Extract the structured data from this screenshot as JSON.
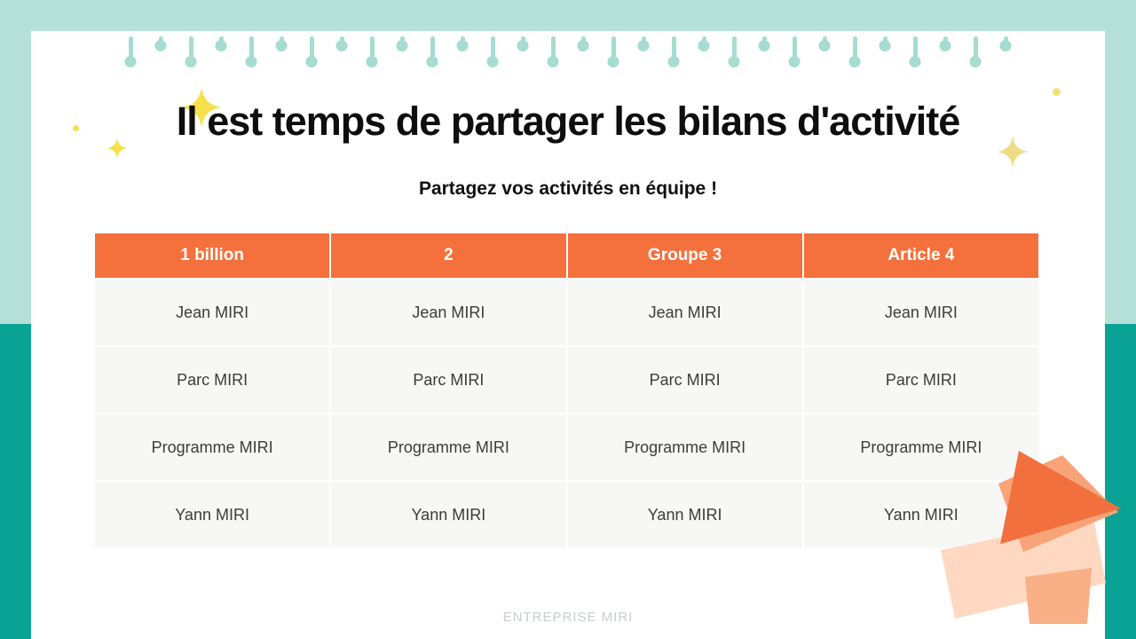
{
  "slide": {
    "title": "Il est temps de partager les bilans d'activité",
    "subtitle": "Partagez vos activités en équipe !",
    "footer": "ENTREPRISE MIRI"
  },
  "table": {
    "headers": [
      "1 billion",
      "2",
      "Groupe 3",
      "Article 4"
    ],
    "rows": [
      [
        "Jean MIRI",
        "Jean MIRI",
        "Jean MIRI",
        "Jean MIRI"
      ],
      [
        "Parc MIRI",
        "Parc MIRI",
        "Parc MIRI",
        "Parc MIRI"
      ],
      [
        "Programme MIRI",
        "Programme MIRI",
        "Programme MIRI",
        "Programme MIRI"
      ],
      [
        "Yann MIRI",
        "Yann MIRI",
        "Yann MIRI",
        "Yann MIRI"
      ]
    ]
  },
  "colors": {
    "header_orange": "#F4703C",
    "cell_background": "#F7F7F6",
    "mint_band": "#B5E0D7",
    "teal_band": "#0BA296",
    "trim_mint": "#A6DCD2",
    "sparkle_yellow": "#F6E14D",
    "ribbon_orange": "#F2703E",
    "ribbon_peach": "#F8A478",
    "ribbon_light_peach": "#FFD8C2"
  }
}
